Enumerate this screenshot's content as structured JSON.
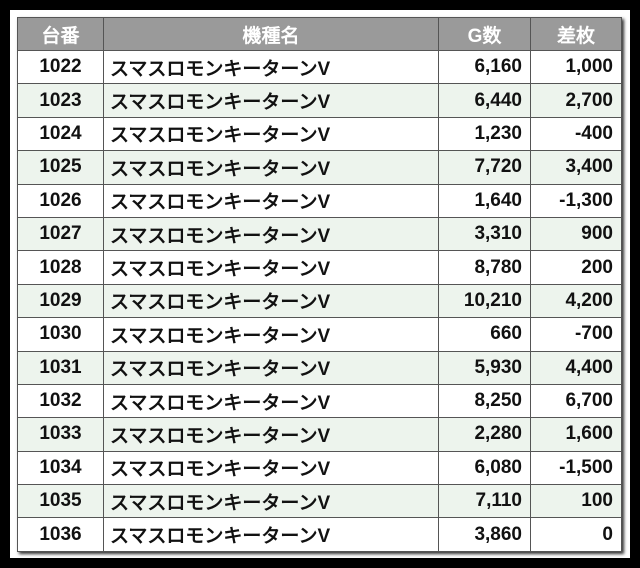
{
  "headers": [
    "台番",
    "機種名",
    "G数",
    "差枚"
  ],
  "rows": [
    {
      "no": "1022",
      "name": "スマスロモンキーターンV",
      "games": "6,160",
      "diff": "1,000"
    },
    {
      "no": "1023",
      "name": "スマスロモンキーターンV",
      "games": "6,440",
      "diff": "2,700"
    },
    {
      "no": "1024",
      "name": "スマスロモンキーターンV",
      "games": "1,230",
      "diff": "-400"
    },
    {
      "no": "1025",
      "name": "スマスロモンキーターンV",
      "games": "7,720",
      "diff": "3,400"
    },
    {
      "no": "1026",
      "name": "スマスロモンキーターンV",
      "games": "1,640",
      "diff": "-1,300"
    },
    {
      "no": "1027",
      "name": "スマスロモンキーターンV",
      "games": "3,310",
      "diff": "900"
    },
    {
      "no": "1028",
      "name": "スマスロモンキーターンV",
      "games": "8,780",
      "diff": "200"
    },
    {
      "no": "1029",
      "name": "スマスロモンキーターンV",
      "games": "10,210",
      "diff": "4,200"
    },
    {
      "no": "1030",
      "name": "スマスロモンキーターンV",
      "games": "660",
      "diff": "-700"
    },
    {
      "no": "1031",
      "name": "スマスロモンキーターンV",
      "games": "5,930",
      "diff": "4,400"
    },
    {
      "no": "1032",
      "name": "スマスロモンキーターンV",
      "games": "8,250",
      "diff": "6,700"
    },
    {
      "no": "1033",
      "name": "スマスロモンキーターンV",
      "games": "2,280",
      "diff": "1,600"
    },
    {
      "no": "1034",
      "name": "スマスロモンキーターンV",
      "games": "6,080",
      "diff": "-1,500"
    },
    {
      "no": "1035",
      "name": "スマスロモンキーターンV",
      "games": "7,110",
      "diff": "100"
    },
    {
      "no": "1036",
      "name": "スマスロモンキーターンV",
      "games": "3,860",
      "diff": "0"
    }
  ],
  "colors": {
    "header_bg": "#9a9a9a",
    "alt_row_bg": "#edf4ed",
    "background": "#000000"
  }
}
